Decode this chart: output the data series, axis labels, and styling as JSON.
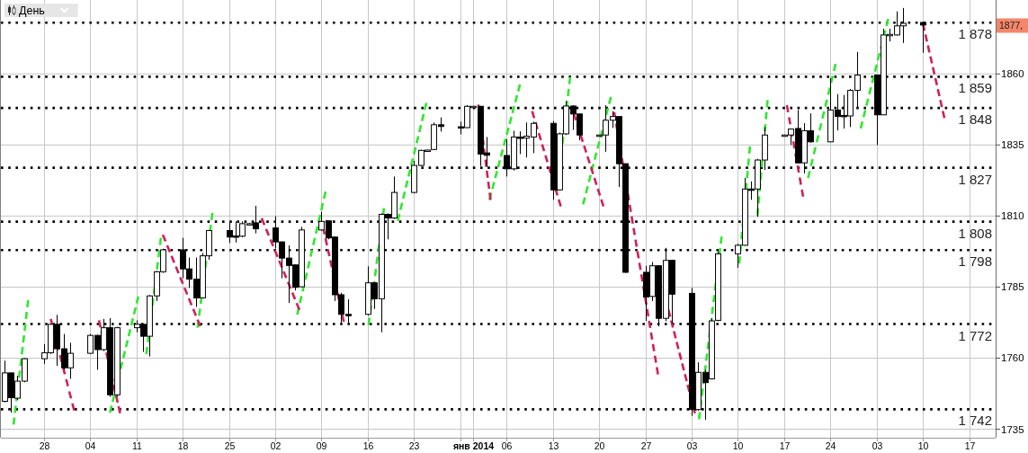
{
  "chart_data": {
    "type": "candlestick",
    "title": "День",
    "color": "#000000",
    "x": [
      "2013-10-22",
      "2013-10-23",
      "2013-10-24",
      "2013-10-25",
      "2013-10-28",
      "2013-10-29",
      "2013-10-30",
      "2013-10-31",
      "2013-11-01",
      "2013-11-04",
      "2013-11-05",
      "2013-11-06",
      "2013-11-07",
      "2013-11-08",
      "2013-11-11",
      "2013-11-12",
      "2013-11-13",
      "2013-11-14",
      "2013-11-15",
      "2013-11-18",
      "2013-11-19",
      "2013-11-20",
      "2013-11-21",
      "2013-11-22",
      "2013-11-25",
      "2013-11-26",
      "2013-11-27",
      "2013-11-28",
      "2013-11-29",
      "2013-12-02",
      "2013-12-03",
      "2013-12-04",
      "2013-12-05",
      "2013-12-06",
      "2013-12-09",
      "2013-12-10",
      "2013-12-11",
      "2013-12-12",
      "2013-12-13",
      "2013-12-16",
      "2013-12-17",
      "2013-12-18",
      "2013-12-19",
      "2013-12-20",
      "2013-12-23",
      "2013-12-24",
      "2013-12-25",
      "2013-12-26",
      "2013-12-27",
      "2013-12-30",
      "2013-12-31",
      "2014-01-01",
      "2014-01-02",
      "2014-01-03",
      "2014-01-06",
      "2014-01-07",
      "2014-01-08",
      "2014-01-09",
      "2014-01-10",
      "2014-01-13",
      "2014-01-14",
      "2014-01-15",
      "2014-01-16",
      "2014-01-17",
      "2014-01-20",
      "2014-01-21",
      "2014-01-22",
      "2014-01-23",
      "2014-01-24",
      "2014-01-27",
      "2014-01-28",
      "2014-01-29",
      "2014-01-30",
      "2014-01-31",
      "2014-02-03",
      "2014-02-04",
      "2014-02-05",
      "2014-02-06",
      "2014-02-07",
      "2014-02-10",
      "2014-02-11",
      "2014-02-12",
      "2014-02-13",
      "2014-02-14",
      "2014-02-17",
      "2014-02-18",
      "2014-02-19",
      "2014-02-20",
      "2014-02-21",
      "2014-02-24",
      "2014-02-25",
      "2014-02-26",
      "2014-02-27",
      "2014-02-28",
      "2014-03-03",
      "2014-03-04",
      "2014-03-05",
      "2014-03-06",
      "2014-03-07",
      "2014-03-10"
    ],
    "ohlc": [
      [
        1744.8,
        1759.1,
        1744.5,
        1754.8
      ],
      [
        1754.8,
        1754.9,
        1740.8,
        1746.1
      ],
      [
        1745.9,
        1753.8,
        1745.3,
        1751.9
      ],
      [
        1751.9,
        1760.0,
        1751.5,
        1759.8
      ],
      [
        1759.8,
        1764.9,
        1758.0,
        1761.9
      ],
      [
        1761.9,
        1772.1,
        1761.5,
        1771.9
      ],
      [
        1771.9,
        1775.2,
        1757.3,
        1763.3
      ],
      [
        1763.3,
        1768.5,
        1755.9,
        1756.6
      ],
      [
        1756.6,
        1765.4,
        1752.7,
        1761.7
      ],
      [
        1761.7,
        1768.5,
        1761.5,
        1768.0
      ],
      [
        1768.0,
        1768.2,
        1755.9,
        1763.0
      ],
      [
        1763.0,
        1773.8,
        1762.5,
        1770.7
      ],
      [
        1770.7,
        1774.1,
        1746.4,
        1747.1
      ],
      [
        1747.1,
        1771.0,
        1746.5,
        1770.7
      ],
      [
        1770.7,
        1773.3,
        1769.1,
        1771.9
      ],
      [
        1771.9,
        1772.2,
        1762.2,
        1767.7
      ],
      [
        1767.7,
        1782.2,
        1760.6,
        1781.9
      ],
      [
        1781.9,
        1790.7,
        1780.1,
        1790.4
      ],
      [
        1790.4,
        1798.5,
        1790.0,
        1798.1
      ],
      [
        1798.1,
        1802.3,
        1788.1,
        1791.4
      ],
      [
        1791.4,
        1795.4,
        1784.7,
        1787.8
      ],
      [
        1787.8,
        1795.4,
        1778.0,
        1781.2
      ],
      [
        1781.2,
        1797.0,
        1781.0,
        1796.0
      ],
      [
        1796.0,
        1805.0,
        1794.6,
        1804.9
      ],
      [
        1804.9,
        1807.6,
        1800.5,
        1802.6
      ],
      [
        1803.0,
        1808.1,
        1800.7,
        1802.6
      ],
      [
        1802.9,
        1808.1,
        1802.5,
        1807.3
      ],
      [
        1807.3,
        1807.6,
        1807.0,
        1807.3
      ],
      [
        1807.6,
        1813.6,
        1803.9,
        1805.5
      ],
      [
        1805.8,
        1809.9,
        1798.6,
        1800.9
      ],
      [
        1800.9,
        1801.0,
        1788.1,
        1795.2
      ],
      [
        1795.2,
        1799.7,
        1779.4,
        1792.6
      ],
      [
        1792.8,
        1793.0,
        1783.8,
        1784.9
      ],
      [
        1785.1,
        1806.2,
        1785.0,
        1805.1
      ],
      [
        1805.1,
        1811.5,
        1804.9,
        1808.1
      ],
      [
        1808.3,
        1808.5,
        1801.8,
        1802.3
      ],
      [
        1802.6,
        1802.8,
        1780.1,
        1782.3
      ],
      [
        1782.3,
        1783.0,
        1772.2,
        1775.4
      ],
      [
        1775.4,
        1780.7,
        1772.2,
        1775.3
      ],
      [
        1775.4,
        1792.3,
        1775.0,
        1786.5
      ],
      [
        1786.5,
        1786.8,
        1777.3,
        1780.9
      ],
      [
        1780.9,
        1810.9,
        1769.1,
        1810.6
      ],
      [
        1810.6,
        1810.9,
        1801.8,
        1809.3
      ],
      [
        1809.3,
        1823.9,
        1809.0,
        1818.3
      ],
      [
        1818.3,
        1829.4,
        1818.0,
        1827.8
      ],
      [
        1827.8,
        1833.3,
        1827.5,
        1833.1
      ],
      [
        1833.1,
        1833.3,
        1833.0,
        1833.2
      ],
      [
        1833.4,
        1842.9,
        1833.2,
        1842.1
      ],
      [
        1842.1,
        1844.7,
        1839.7,
        1841.5
      ],
      [
        1841.4,
        1843.2,
        1838.7,
        1841.1
      ],
      [
        1841.1,
        1849.0,
        1841.0,
        1848.6
      ],
      [
        1848.6,
        1848.7,
        1848.5,
        1848.6
      ],
      [
        1848.6,
        1848.7,
        1827.6,
        1831.8
      ],
      [
        1832.2,
        1837.8,
        1827.3,
        1831.4
      ],
      [
        1831.3,
        1837.0,
        1823.9,
        1826.6
      ],
      [
        1826.6,
        1840.0,
        1826.0,
        1837.8
      ],
      [
        1837.8,
        1839.8,
        1831.8,
        1837.3
      ],
      [
        1837.4,
        1842.9,
        1830.6,
        1838.1
      ],
      [
        1837.8,
        1843.2,
        1832.1,
        1842.6
      ],
      [
        1842.6,
        1843.4,
        1815.7,
        1819.2
      ],
      [
        1819.2,
        1839.4,
        1819.0,
        1838.9
      ],
      [
        1838.9,
        1850.5,
        1838.5,
        1848.7
      ],
      [
        1848.7,
        1849.0,
        1840.3,
        1845.9
      ],
      [
        1845.9,
        1846.0,
        1836.6,
        1838.5
      ],
      [
        1838.5,
        1838.6,
        1838.4,
        1838.5
      ],
      [
        1838.5,
        1849.0,
        1832.6,
        1843.7
      ],
      [
        1843.7,
        1846.9,
        1841.0,
        1845.0
      ],
      [
        1845.0,
        1845.1,
        1820.2,
        1828.4
      ],
      [
        1828.4,
        1828.5,
        1790.0,
        1790.2
      ],
      [
        1790.2,
        1792.5,
        1773.1,
        1781.5
      ],
      [
        1781.7,
        1793.8,
        1780.1,
        1792.5
      ],
      [
        1792.5,
        1792.6,
        1771.2,
        1774.0
      ],
      [
        1774.0,
        1798.8,
        1773.0,
        1794.4
      ],
      [
        1794.4,
        1794.5,
        1772.2,
        1782.5
      ],
      [
        1782.8,
        1784.7,
        1739.7,
        1741.9
      ],
      [
        1741.9,
        1758.5,
        1741.5,
        1755.0
      ],
      [
        1755.0,
        1755.9,
        1738.3,
        1751.4
      ],
      [
        1752.7,
        1774.1,
        1752.5,
        1773.1
      ],
      [
        1773.3,
        1797.6,
        1773.0,
        1796.7
      ],
      [
        1796.7,
        1800.2,
        1791.8,
        1799.7
      ],
      [
        1799.7,
        1823.4,
        1799.5,
        1819.5
      ],
      [
        1819.5,
        1822.2,
        1815.7,
        1819.3
      ],
      [
        1819.5,
        1830.1,
        1809.7,
        1829.7
      ],
      [
        1829.7,
        1841.3,
        1826.2,
        1838.5
      ],
      [
        1838.5,
        1838.6,
        1838.4,
        1838.5
      ],
      [
        1838.5,
        1840.8,
        1835.0,
        1840.6
      ],
      [
        1840.8,
        1847.3,
        1828.5,
        1828.7
      ],
      [
        1828.7,
        1842.7,
        1825.0,
        1840.0
      ],
      [
        1840.0,
        1846.1,
        1835.8,
        1836.1
      ],
      [
        1836.1,
        1858.5,
        1836.0,
        1847.3
      ],
      [
        1847.3,
        1852.9,
        1840.1,
        1845.0
      ],
      [
        1845.4,
        1852.6,
        1840.8,
        1845.0
      ],
      [
        1845.2,
        1854.7,
        1841.3,
        1854.2
      ],
      [
        1854.2,
        1867.7,
        1847.9,
        1859.6
      ],
      [
        1859.6,
        1859.7,
        1835.0,
        1845.6
      ],
      [
        1845.6,
        1875.9,
        1845.5,
        1873.7
      ],
      [
        1873.7,
        1875.9,
        1871.4,
        1873.9
      ],
      [
        1873.7,
        1882.0,
        1873.5,
        1876.9
      ],
      [
        1876.9,
        1883.2,
        1870.9,
        1877.8
      ],
      [
        1878.1,
        1878.2,
        1867.4,
        1877.2
      ]
    ],
    "series": [
      {
        "type": "line",
        "color": "#2ee82e",
        "x": [
          "2013-10-23T10:00",
          "2013-10-25T15:00"
        ],
        "values": [
          1736.6,
          1780.4
        ]
      },
      {
        "type": "line",
        "color": "#2ee82e",
        "x": [
          "2013-11-07",
          "2013-11-11T07:00"
        ],
        "values": [
          1740.8,
          1781.7
        ]
      },
      {
        "type": "line",
        "color": "#2ee82e",
        "x": [
          "2013-11-12T12:00",
          "2013-11-14T17:00"
        ],
        "values": [
          1761.4,
          1802.3
        ]
      },
      {
        "type": "line",
        "color": "#2ee82e",
        "x": [
          "2013-11-20T06:00",
          "2013-11-22T12:00"
        ],
        "values": [
          1770.7,
          1811.1
        ]
      },
      {
        "type": "line",
        "color": "#2ee82e",
        "x": [
          "2013-12-05T08:00",
          "2013-12-09T15:00"
        ],
        "values": [
          1775.3,
          1818.6
        ]
      },
      {
        "type": "line",
        "color": "#2ee82e",
        "x": [
          "2013-12-16T03:00",
          "2013-12-18T11:00"
        ],
        "values": [
          1771.7,
          1812.8
        ]
      },
      {
        "type": "line",
        "color": "#2ee82e",
        "x": [
          "2013-12-20T13:00",
          "2013-12-24T21:00"
        ],
        "values": [
          1808.3,
          1849.8
        ]
      },
      {
        "type": "line",
        "color": "#2ee82e",
        "x": [
          "2014-01-03T10:00",
          "2014-01-08T01:00"
        ],
        "values": [
          1815.7,
          1856.3
        ]
      },
      {
        "type": "line",
        "color": "#2ee82e",
        "x": [
          "2014-01-13T15:00",
          "2014-01-15T15:00"
        ],
        "values": [
          1818.6,
          1858.9
        ]
      },
      {
        "type": "line",
        "color": "#2ee82e",
        "x": [
          "2014-01-17T14:00",
          "2014-01-21T19:00"
        ],
        "values": [
          1814.1,
          1851.9
        ]
      },
      {
        "type": "line",
        "color": "#2ee82e",
        "x": [
          "2014-02-04T03:00",
          "2014-02-07T13:00"
        ],
        "values": [
          1738.5,
          1802.8
        ]
      },
      {
        "type": "line",
        "color": "#2ee82e",
        "x": [
          "2014-02-10T05:00",
          "2014-02-11T20:00"
        ],
        "values": [
          1793.3,
          1834.5
        ]
      },
      {
        "type": "line",
        "color": "#2ee82e",
        "x": [
          "2014-02-12T23:00",
          "2014-02-14T12:00"
        ],
        "values": [
          1810.2,
          1850.8
        ]
      },
      {
        "type": "line",
        "color": "#2ee82e",
        "x": [
          "2014-02-20T15:00",
          "2014-02-24T19:00"
        ],
        "values": [
          1823.4,
          1863.5
        ]
      },
      {
        "type": "line",
        "color": "#2ee82e",
        "x": [
          "2014-02-28T14:00",
          "2014-03-04T18:00"
        ],
        "values": [
          1840.8,
          1879.3
        ]
      },
      {
        "type": "line",
        "color": "#d0205a",
        "x": [
          "2013-10-29T01:00",
          "2013-11-01T14:00"
        ],
        "values": [
          1773.8,
          1741.6
        ]
      },
      {
        "type": "line",
        "color": "#d0205a",
        "x": [
          "2013-11-05T08:00",
          "2013-11-08T13:00"
        ],
        "values": [
          1773.3,
          1740.6
        ]
      },
      {
        "type": "line",
        "color": "#d0205a",
        "x": [
          "2013-11-15",
          "2013-11-20T16:00"
        ],
        "values": [
          1803.4,
          1771.2
        ]
      },
      {
        "type": "line",
        "color": "#d0205a",
        "x": [
          "2013-11-29T23:00",
          "2013-12-05T16:00"
        ],
        "values": [
          1809.2,
          1777.0
        ]
      },
      {
        "type": "line",
        "color": "#d0205a",
        "x": [
          "2013-12-09T06:00",
          "2013-12-12T09:00"
        ],
        "values": [
          1806.0,
          1772.8
        ]
      },
      {
        "type": "line",
        "color": "#d0205a",
        "x": [
          "2014-01-01T18:00",
          "2014-01-03T14:00"
        ],
        "values": [
          1849.2,
          1815.7
        ]
      },
      {
        "type": "line",
        "color": "#d0205a",
        "x": [
          "2014-01-09T21:00",
          "2014-01-14T05:00"
        ],
        "values": [
          1846.9,
          1813.4
        ]
      },
      {
        "type": "line",
        "color": "#d0205a",
        "x": [
          "2014-01-16T04:00",
          "2014-01-20T16:00"
        ],
        "values": [
          1846.1,
          1813.4
        ]
      },
      {
        "type": "line",
        "color": "#d0205a",
        "x": [
          "2014-01-22T07:00",
          "2014-01-28T22:00"
        ],
        "values": [
          1846.6,
          1754.3
        ]
      },
      {
        "type": "line",
        "color": "#d0205a",
        "x": [
          "2014-01-30T12:00",
          "2014-02-03T12:00"
        ],
        "values": [
          1777.0,
          1740.6
        ]
      },
      {
        "type": "line",
        "color": "#d0205a",
        "x": [
          "2014-02-17T10:00",
          "2014-02-19T21:00"
        ],
        "values": [
          1849.0,
          1816.8
        ]
      },
      {
        "type": "line",
        "color": "#d0205a",
        "x": [
          "2014-03-10",
          "2014-03-13T06:00"
        ],
        "values": [
          1877.7,
          1844.5
        ]
      }
    ],
    "line_style": "dashed",
    "xlim": [
      "2013-10-21T12:00",
      "2014-03-21"
    ],
    "xticks": [
      {
        "value": "2013-10-28",
        "label": "28"
      },
      {
        "value": "2013-11-04",
        "label": "04"
      },
      {
        "value": "2013-11-11",
        "label": "11"
      },
      {
        "value": "2013-11-18",
        "label": "18"
      },
      {
        "value": "2013-11-25",
        "label": "25"
      },
      {
        "value": "2013-12-02",
        "label": "02"
      },
      {
        "value": "2013-12-09",
        "label": "09"
      },
      {
        "value": "2013-12-16",
        "label": "16"
      },
      {
        "value": "2013-12-23",
        "label": "23"
      },
      {
        "value": "2013-12-30",
        "label": null
      },
      {
        "value": "2014-01-01",
        "label": "янв 2014"
      },
      {
        "value": "2014-01-06",
        "label": "06"
      },
      {
        "value": "2014-01-13",
        "label": "13"
      },
      {
        "value": "2014-01-20",
        "label": "20"
      },
      {
        "value": "2014-01-27",
        "label": "27"
      },
      {
        "value": "2014-02-03",
        "label": "03"
      },
      {
        "value": "2014-02-10",
        "label": "10"
      },
      {
        "value": "2014-02-17",
        "label": "17"
      },
      {
        "value": "2014-02-24",
        "label": "24"
      },
      {
        "value": "2014-03-03",
        "label": "03"
      },
      {
        "value": "2014-03-10",
        "label": "10"
      },
      {
        "value": "2014-03-17",
        "label": "17"
      }
    ],
    "ylim": [
      1732,
      1886
    ],
    "yticks": [
      1735,
      1760,
      1785,
      1810,
      1835,
      1860
    ],
    "grid": true,
    "ref_lines": [
      {
        "axis": "y",
        "value": 1878,
        "label": "1 878",
        "color": "#000000",
        "line_style": "dotted"
      },
      {
        "axis": "y",
        "value": 1859,
        "label": "1 859",
        "color": "#000000",
        "line_style": "dotted"
      },
      {
        "axis": "y",
        "value": 1848,
        "label": "1 848",
        "color": "#000000",
        "line_style": "dotted"
      },
      {
        "axis": "y",
        "value": 1827,
        "label": "1 827",
        "color": "#000000",
        "line_style": "dotted"
      },
      {
        "axis": "y",
        "value": 1808,
        "label": "1 808",
        "color": "#000000",
        "line_style": "dotted"
      },
      {
        "axis": "y",
        "value": 1798,
        "label": "1 798",
        "color": "#000000",
        "line_style": "dotted"
      },
      {
        "axis": "y",
        "value": 1772,
        "label": "1 772",
        "color": "#000000",
        "line_style": "dotted"
      },
      {
        "axis": "y",
        "value": 1742,
        "label": "1 742",
        "color": "#000000",
        "line_style": "dotted"
      }
    ],
    "annotations": [
      {
        "text": "1877,",
        "y": 1877
      }
    ]
  }
}
